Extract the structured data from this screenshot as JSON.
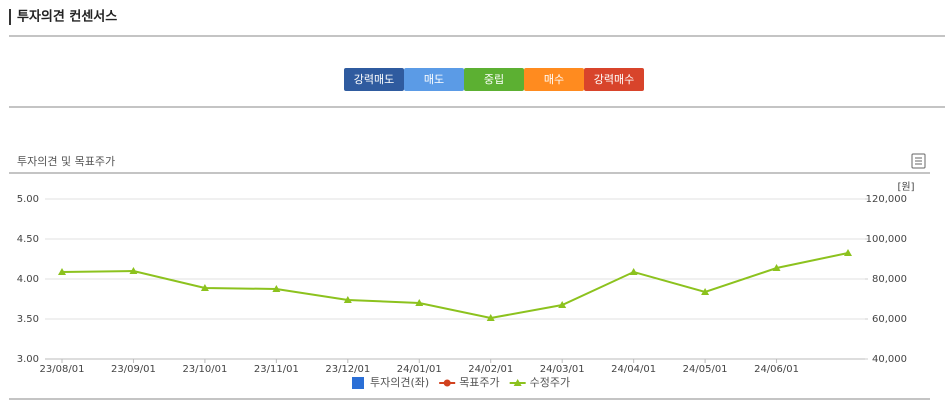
{
  "header": {
    "title": "투자의견 컨센서스",
    "buttons": [
      {
        "label": "강력매도",
        "color": "#2f5b9f"
      },
      {
        "label": "매도",
        "color": "#5b9be6"
      },
      {
        "label": "중립",
        "color": "#5cb032"
      },
      {
        "label": "매수",
        "color": "#ff8b1f"
      },
      {
        "label": "강력매수",
        "color": "#d8442b"
      }
    ]
  },
  "section": {
    "title": "투자의견 및 목표주가"
  },
  "chart_data": {
    "type": "line",
    "categories": [
      "23/08/01",
      "23/09/01",
      "23/10/01",
      "23/11/01",
      "23/12/01",
      "24/01/01",
      "24/02/01",
      "24/03/01",
      "24/04/01",
      "24/05/01",
      "24/06/01",
      null
    ],
    "series": [
      {
        "name": "투자의견(좌)",
        "color": "#2b6fd6",
        "marker": "square",
        "axis": "y",
        "values": [
          null,
          null,
          null,
          null,
          null,
          null,
          null,
          null,
          null,
          null,
          null,
          null
        ]
      },
      {
        "name": "목표주가",
        "color": "#d2421f",
        "marker": "circle",
        "axis": "y2",
        "values": [
          null,
          null,
          null,
          null,
          null,
          null,
          null,
          null,
          null,
          null,
          null,
          null
        ]
      },
      {
        "name": "수정주가",
        "color": "#8cc21e",
        "marker": "triangle",
        "axis": "y2",
        "values": [
          83500,
          84000,
          75500,
          75000,
          69500,
          68000,
          60500,
          67000,
          83500,
          73500,
          85500,
          93000
        ]
      }
    ],
    "ylim": [
      3,
      5
    ],
    "yticks": [
      {
        "value": 3,
        "label": "3.00"
      },
      {
        "value": 3.5,
        "label": "3.50"
      },
      {
        "value": 4,
        "label": "4.00"
      },
      {
        "value": 4.5,
        "label": "4.50"
      },
      {
        "value": 5,
        "label": "5.00"
      }
    ],
    "y2lim": [
      40000,
      120000
    ],
    "y2ticks": [
      {
        "value": 40000,
        "label": "40,000"
      },
      {
        "value": 60000,
        "label": "60,000"
      },
      {
        "value": 80000,
        "label": "80,000"
      },
      {
        "value": 100000,
        "label": "100,000"
      },
      {
        "value": 120000,
        "label": "120,000"
      }
    ],
    "y2label": "[원]",
    "grid": true
  }
}
